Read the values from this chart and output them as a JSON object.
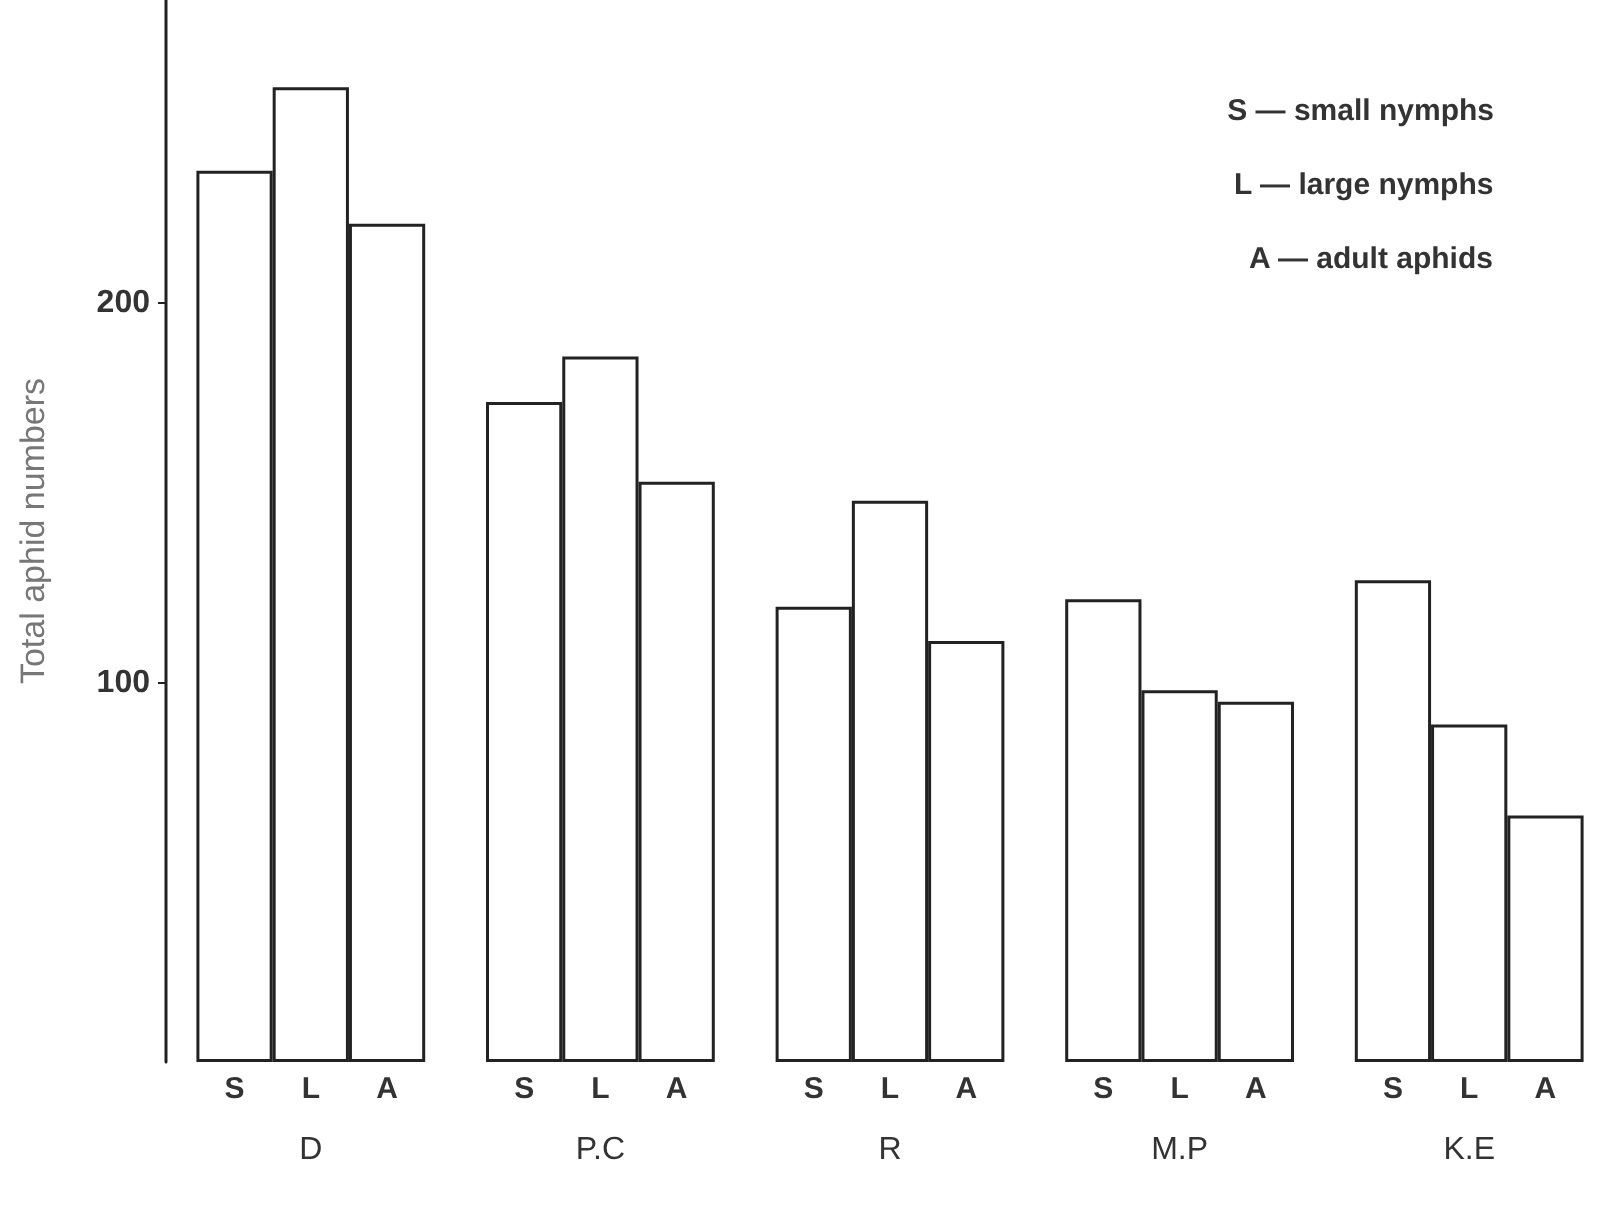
{
  "chart_data": {
    "type": "bar",
    "ylabel": "Total aphid numbers",
    "categories": [
      "D",
      "P.C",
      "R",
      "M.P",
      "K.E"
    ],
    "series": [
      {
        "name": "S",
        "color": "#ffffff",
        "values": [
          235,
          174,
          120,
          122,
          127
        ]
      },
      {
        "name": "L",
        "color": "#ffffff",
        "values": [
          257,
          186,
          148,
          98,
          89
        ]
      },
      {
        "name": "A",
        "color": "#ffffff",
        "values": [
          221,
          153,
          111,
          95,
          65
        ]
      }
    ],
    "ylim": [
      0,
      280
    ],
    "yticks": [
      100,
      200
    ],
    "grid": false,
    "annotations": [
      "S — small nymphs",
      "L — large nymphs",
      "A — adult aphids"
    ]
  }
}
